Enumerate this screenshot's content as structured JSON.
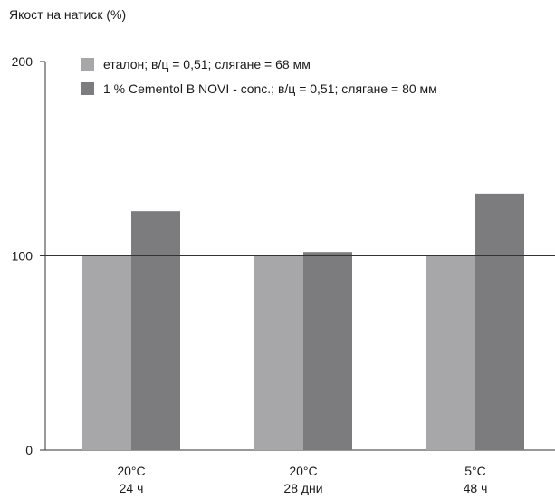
{
  "chart_data": {
    "type": "bar",
    "ylabel": "Якост на натиск (%)",
    "ylim": [
      0,
      200
    ],
    "yticks": [
      "0",
      "100",
      "200"
    ],
    "reference_line": 100,
    "categories": [
      [
        "20°C",
        "24 ч"
      ],
      [
        "20°C",
        "28 дни"
      ],
      [
        "5°C",
        "48 ч"
      ]
    ],
    "series": [
      {
        "name": "еталон; в/ц = 0,51; слягане = 68 мм",
        "color": "#a7a7aa",
        "values": [
          100,
          100,
          100
        ]
      },
      {
        "name": "1 % Cementol B NOVI - conc.; в/ц = 0,51; слягане = 80 мм",
        "color": "#7c7c7f",
        "values": [
          123,
          102,
          132
        ]
      }
    ],
    "legend_position": "top-left",
    "grid": false
  }
}
